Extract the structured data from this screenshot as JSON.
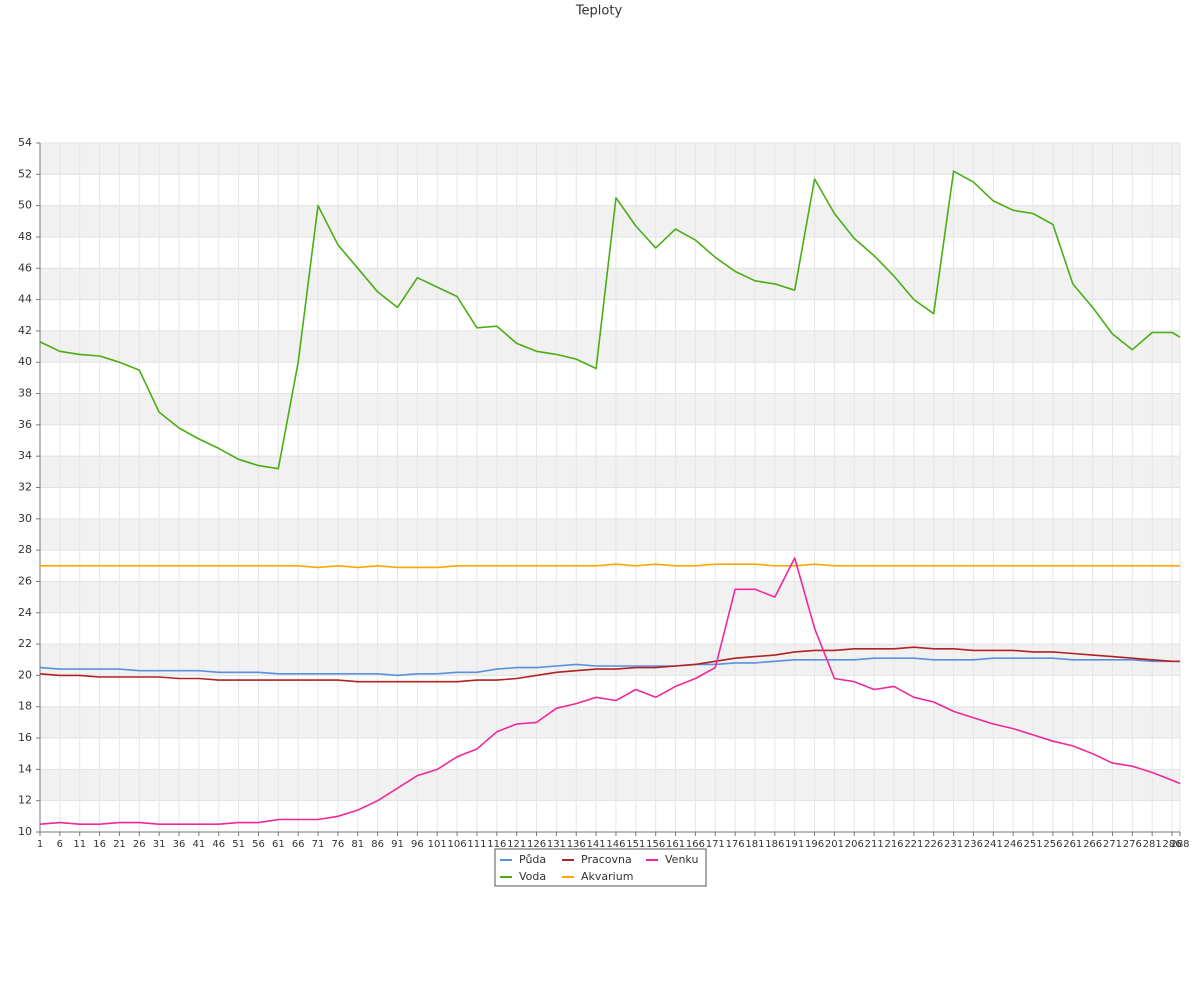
{
  "chart_data": {
    "type": "line",
    "title": "Teploty",
    "x": [
      1,
      6,
      11,
      16,
      21,
      26,
      31,
      36,
      41,
      46,
      51,
      56,
      61,
      66,
      71,
      76,
      81,
      86,
      91,
      96,
      101,
      106,
      111,
      116,
      121,
      126,
      131,
      136,
      141,
      146,
      151,
      156,
      161,
      166,
      171,
      176,
      181,
      186,
      191,
      196,
      201,
      206,
      211,
      216,
      221,
      226,
      231,
      236,
      241,
      246,
      251,
      256,
      261,
      266,
      271,
      276,
      281,
      286,
      288
    ],
    "xlim": [
      1,
      288
    ],
    "ylim": [
      10,
      54
    ],
    "yticks": [
      10,
      12,
      14,
      16,
      18,
      20,
      22,
      24,
      26,
      28,
      30,
      32,
      34,
      36,
      38,
      40,
      42,
      44,
      46,
      48,
      50,
      52,
      54
    ],
    "grid": true,
    "legend": "bottom",
    "series": [
      {
        "name": "Půda",
        "color": "#5b8fe0",
        "values": [
          20.5,
          20.4,
          20.4,
          20.4,
          20.4,
          20.3,
          20.3,
          20.3,
          20.3,
          20.2,
          20.2,
          20.2,
          20.1,
          20.1,
          20.1,
          20.1,
          20.1,
          20.1,
          20.0,
          20.1,
          20.1,
          20.2,
          20.2,
          20.4,
          20.5,
          20.5,
          20.6,
          20.7,
          20.6,
          20.6,
          20.6,
          20.6,
          20.6,
          20.7,
          20.7,
          20.8,
          20.8,
          20.9,
          21.0,
          21.0,
          21.0,
          21.0,
          21.1,
          21.1,
          21.1,
          21.0,
          21.0,
          21.0,
          21.1,
          21.1,
          21.1,
          21.1,
          21.0,
          21.0,
          21.0,
          21.0,
          20.9,
          20.9,
          20.9
        ]
      },
      {
        "name": "Voda",
        "color": "#4aae12",
        "values": [
          41.3,
          40.7,
          40.5,
          40.4,
          40.0,
          39.5,
          36.8,
          35.8,
          35.1,
          34.5,
          33.8,
          33.4,
          33.2,
          40.0,
          50.0,
          47.5,
          46.0,
          44.5,
          43.5,
          45.4,
          44.8,
          44.2,
          42.2,
          42.3,
          41.2,
          40.7,
          40.5,
          40.2,
          39.6,
          50.5,
          48.7,
          47.3,
          48.5,
          47.8,
          46.7,
          45.8,
          45.2,
          45.0,
          44.6,
          51.7,
          49.5,
          47.9,
          46.8,
          45.5,
          44.0,
          43.1,
          52.2,
          51.5,
          50.3,
          49.7,
          49.5,
          48.8,
          45.0,
          43.5,
          41.8,
          40.8,
          41.9,
          41.9,
          41.6
        ]
      },
      {
        "name": "Pracovna",
        "color": "#b22222",
        "values": [
          20.1,
          20.0,
          20.0,
          19.9,
          19.9,
          19.9,
          19.9,
          19.8,
          19.8,
          19.7,
          19.7,
          19.7,
          19.7,
          19.7,
          19.7,
          19.7,
          19.6,
          19.6,
          19.6,
          19.6,
          19.6,
          19.6,
          19.7,
          19.7,
          19.8,
          20.0,
          20.2,
          20.3,
          20.4,
          20.4,
          20.5,
          20.5,
          20.6,
          20.7,
          20.9,
          21.1,
          21.2,
          21.3,
          21.5,
          21.6,
          21.6,
          21.7,
          21.7,
          21.7,
          21.8,
          21.7,
          21.7,
          21.6,
          21.6,
          21.6,
          21.5,
          21.5,
          21.4,
          21.3,
          21.2,
          21.1,
          21.0,
          20.9,
          20.9
        ]
      },
      {
        "name": "Akvarium",
        "color": "#ffa500",
        "values": [
          27.0,
          27.0,
          27.0,
          27.0,
          27.0,
          27.0,
          27.0,
          27.0,
          27.0,
          27.0,
          27.0,
          27.0,
          27.0,
          27.0,
          26.9,
          27.0,
          26.9,
          27.0,
          26.9,
          26.9,
          26.9,
          27.0,
          27.0,
          27.0,
          27.0,
          27.0,
          27.0,
          27.0,
          27.0,
          27.1,
          27.0,
          27.1,
          27.0,
          27.0,
          27.1,
          27.1,
          27.1,
          27.0,
          27.0,
          27.1,
          27.0,
          27.0,
          27.0,
          27.0,
          27.0,
          27.0,
          27.0,
          27.0,
          27.0,
          27.0,
          27.0,
          27.0,
          27.0,
          27.0,
          27.0,
          27.0,
          27.0,
          27.0,
          27.0
        ]
      },
      {
        "name": "Venku",
        "color": "#f0289a",
        "values": [
          10.5,
          10.6,
          10.5,
          10.5,
          10.6,
          10.6,
          10.5,
          10.5,
          10.5,
          10.5,
          10.6,
          10.6,
          10.8,
          10.8,
          10.8,
          11.0,
          11.4,
          12.0,
          12.8,
          13.6,
          14.0,
          14.8,
          15.3,
          16.4,
          16.9,
          17.0,
          17.9,
          18.2,
          18.6,
          18.4,
          19.1,
          18.6,
          19.3,
          19.8,
          20.5,
          25.5,
          25.5,
          25.0,
          27.5,
          23.0,
          19.8,
          19.6,
          19.1,
          19.3,
          18.6,
          18.3,
          17.7,
          17.3,
          16.9,
          16.6,
          16.2,
          15.8,
          15.5,
          15.0,
          14.4,
          14.2,
          13.8,
          13.3,
          13.1
        ]
      }
    ]
  }
}
